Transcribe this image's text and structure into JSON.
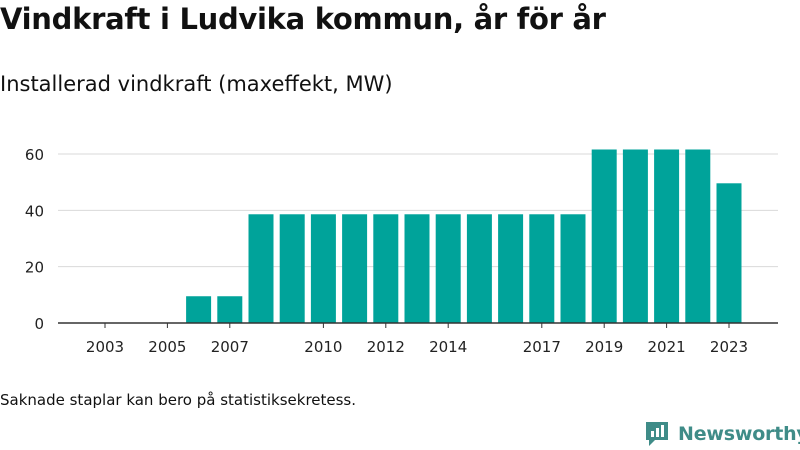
{
  "title": "Vindkraft i Ludvika kommun, år för år",
  "subtitle": "Installerad vindkraft (maxeffekt, MW)",
  "footnote": "Saknade staplar kan bero på statistiksekretess.",
  "brand": {
    "name": "Newsworthy",
    "logo_icon": "newsworthy-logo-icon",
    "color": "#3f8c88"
  },
  "chart_data": {
    "type": "bar",
    "categories": [
      "2003",
      "2004",
      "2005",
      "2006",
      "2007",
      "2008",
      "2009",
      "2010",
      "2011",
      "2012",
      "2013",
      "2014",
      "2015",
      "2016",
      "2017",
      "2018",
      "2019",
      "2020",
      "2021",
      "2022",
      "2023"
    ],
    "values": [
      null,
      null,
      null,
      9.5,
      9.5,
      38.6,
      38.6,
      38.6,
      38.6,
      38.6,
      38.6,
      38.6,
      38.6,
      38.6,
      38.6,
      38.6,
      61.6,
      61.6,
      61.6,
      61.6,
      49.6
    ],
    "x_tick_labels": [
      "2003",
      "2005",
      "2007",
      "2010",
      "2012",
      "2014",
      "2017",
      "2019",
      "2021",
      "2023"
    ],
    "y_ticks": [
      0,
      20,
      40,
      60
    ],
    "ylim": [
      0,
      65
    ],
    "xlabel": "",
    "ylabel": "",
    "grid": true,
    "bar_color": "#00a39a"
  }
}
